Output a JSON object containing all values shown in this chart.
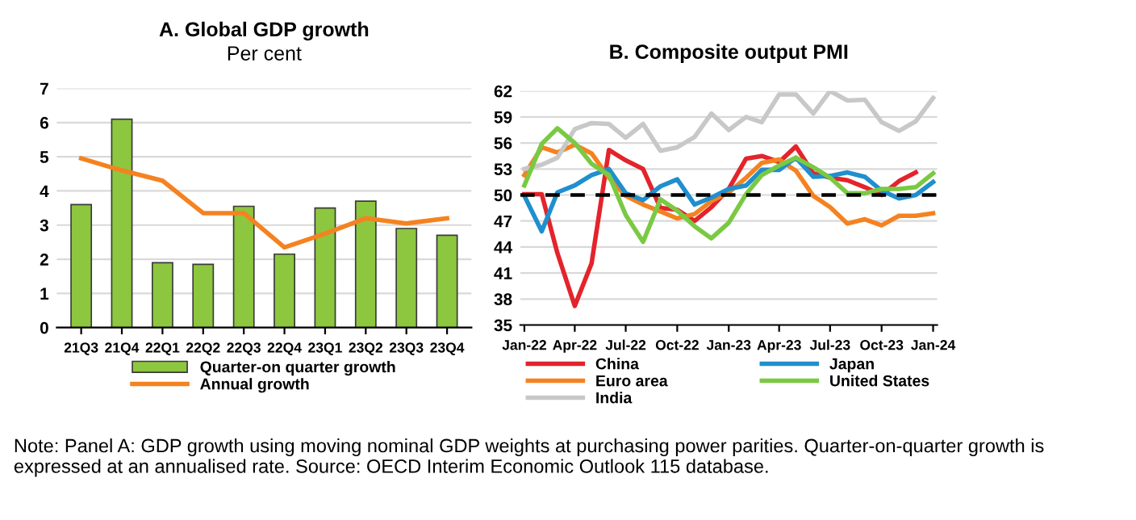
{
  "chart_data": [
    {
      "type": "bar",
      "title": "A. Global GDP growth",
      "subtitle": "Per cent",
      "categories": [
        "21Q3",
        "21Q4",
        "22Q1",
        "22Q2",
        "22Q3",
        "22Q4",
        "23Q1",
        "23Q2",
        "23Q3",
        "23Q4"
      ],
      "series": [
        {
          "name": "Quarter-on quarter growth",
          "color": "#8dc63f",
          "values": [
            3.6,
            6.1,
            1.9,
            1.85,
            3.55,
            2.15,
            3.5,
            3.7,
            2.9,
            2.7
          ]
        },
        {
          "name": "Annual growth",
          "type": "line",
          "color": "#f58220",
          "values": [
            4.95,
            4.6,
            4.3,
            3.35,
            3.35,
            2.35,
            2.75,
            3.2,
            3.05,
            3.2
          ]
        }
      ],
      "ylim": [
        0,
        7
      ],
      "yticks": [
        0,
        1,
        2,
        3,
        4,
        5,
        6,
        7
      ],
      "grid": "y",
      "legend": "bottom",
      "annotations": [
        "Note: Panel A: GDP growth using moving nominal GDP weights at purchasing power parities. Quarter-on-quarter growth is expressed at an annualised rate. Source: OECD Interim Economic Outlook 115 database."
      ]
    },
    {
      "type": "line",
      "title": "B. Composite output PMI",
      "x": [
        "2022-01",
        "2022-02",
        "2022-03",
        "2022-04",
        "2022-05",
        "2022-06",
        "2022-07",
        "2022-08",
        "2022-09",
        "2022-10",
        "2022-11",
        "2022-12",
        "2023-01",
        "2023-02",
        "2023-03",
        "2023-04",
        "2023-05",
        "2023-06",
        "2023-07",
        "2023-08",
        "2023-09",
        "2023-10",
        "2023-11",
        "2023-12",
        "2024-01"
      ],
      "series": [
        {
          "name": "China",
          "color": "#e3242b",
          "values": [
            50.1,
            50.1,
            43.3,
            37.2,
            42.1,
            55.2,
            54.0,
            53.0,
            48.5,
            48.3,
            47.0,
            48.6,
            50.7,
            54.2,
            54.5,
            53.8,
            55.6,
            52.5,
            52.0,
            51.7,
            50.9,
            50.0,
            51.6,
            52.6,
            null
          ]
        },
        {
          "name": "Euro area",
          "color": "#f58220",
          "values": [
            52.3,
            55.5,
            54.9,
            55.8,
            54.8,
            52.0,
            49.9,
            48.9,
            48.1,
            47.3,
            47.8,
            49.3,
            50.3,
            52.0,
            53.7,
            54.1,
            52.8,
            49.9,
            48.6,
            46.7,
            47.2,
            46.5,
            47.6,
            47.6,
            47.9
          ]
        },
        {
          "name": "India",
          "color": "#c8c8c8",
          "values": [
            53.0,
            53.5,
            54.3,
            57.6,
            58.3,
            58.2,
            56.6,
            58.2,
            55.1,
            55.5,
            56.7,
            59.4,
            57.5,
            59.0,
            58.4,
            61.6,
            61.6,
            59.4,
            62.0,
            60.9,
            61.0,
            58.4,
            57.4,
            58.5,
            61.2
          ]
        },
        {
          "name": "Japan",
          "color": "#1f8fce",
          "values": [
            49.9,
            45.8,
            50.3,
            51.1,
            52.3,
            53.0,
            50.2,
            49.4,
            51.0,
            51.8,
            48.9,
            49.7,
            50.7,
            51.1,
            52.9,
            52.9,
            54.3,
            52.1,
            52.2,
            52.6,
            52.1,
            50.5,
            49.6,
            50.0,
            51.5
          ]
        },
        {
          "name": "United States",
          "color": "#7ac943",
          "values": [
            51.1,
            55.9,
            57.7,
            56.0,
            53.6,
            52.3,
            47.7,
            44.6,
            49.5,
            48.2,
            46.4,
            45.0,
            46.8,
            50.1,
            52.3,
            53.4,
            54.3,
            53.2,
            52.0,
            50.2,
            50.2,
            50.7,
            50.7,
            50.9,
            52.5
          ]
        }
      ],
      "xlim": [
        "2022-01",
        "2024-01"
      ],
      "xticks": [
        {
          "value": "2022-01",
          "label": "Jan-22"
        },
        {
          "value": "2022-04",
          "label": "Apr-22"
        },
        {
          "value": "2022-07",
          "label": "Jul-22"
        },
        {
          "value": "2022-10",
          "label": "Oct-22"
        },
        {
          "value": "2023-01",
          "label": "Jan-23"
        },
        {
          "value": "2023-04",
          "label": "Apr-23"
        },
        {
          "value": "2023-07",
          "label": "Jul-23"
        },
        {
          "value": "2023-10",
          "label": "Oct-23"
        },
        {
          "value": "2024-01",
          "label": "Jan-24"
        }
      ],
      "ylim": [
        35,
        62
      ],
      "yticks": [
        35,
        38,
        41,
        44,
        47,
        50,
        53,
        56,
        59,
        62
      ],
      "grid": "y",
      "legend": "bottom",
      "ref_lines": [
        {
          "axis": "y",
          "value": 50,
          "color": "#000000",
          "line_style": "dashed"
        }
      ]
    }
  ]
}
